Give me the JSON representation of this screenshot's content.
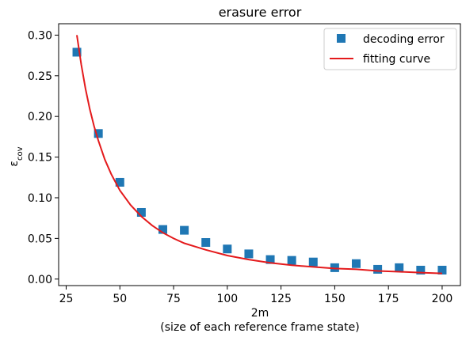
{
  "chart_data": {
    "type": "scatter",
    "title": "erasure error",
    "xlabel": "2m",
    "xlabel_sub": "(size of each reference frame state)",
    "ylabel_base": "ε",
    "ylabel_sub": "cov",
    "xlim": [
      21.5,
      208.5
    ],
    "ylim": [
      -0.008,
      0.314
    ],
    "xticks": [
      25,
      50,
      75,
      100,
      125,
      150,
      175,
      200
    ],
    "xtick_labels": [
      "25",
      "50",
      "75",
      "100",
      "125",
      "150",
      "175",
      "200"
    ],
    "yticks": [
      0.0,
      0.05,
      0.1,
      0.15,
      0.2,
      0.25,
      0.3
    ],
    "ytick_labels": [
      "0.00",
      "0.05",
      "0.10",
      "0.15",
      "0.20",
      "0.25",
      "0.30"
    ],
    "grid": false,
    "legend_position": "top-right",
    "series": [
      {
        "name": "decoding error",
        "kind": "scatter",
        "marker": "square",
        "color": "#1f77b4",
        "x": [
          30,
          40,
          50,
          60,
          70,
          80,
          90,
          100,
          110,
          120,
          130,
          140,
          150,
          160,
          170,
          180,
          190,
          200
        ],
        "y": [
          0.279,
          0.179,
          0.119,
          0.082,
          0.061,
          0.06,
          0.045,
          0.037,
          0.031,
          0.024,
          0.023,
          0.021,
          0.014,
          0.019,
          0.012,
          0.014,
          0.011,
          0.011
        ]
      },
      {
        "name": "fitting curve",
        "kind": "line",
        "color": "#e41a1c",
        "x": [
          30,
          32,
          34,
          36,
          38,
          40,
          43,
          46,
          50,
          55,
          60,
          65,
          70,
          75,
          80,
          90,
          100,
          110,
          120,
          130,
          140,
          150,
          160,
          170,
          180,
          190,
          200
        ],
        "y": [
          0.3,
          0.264,
          0.234,
          0.209,
          0.188,
          0.17,
          0.147,
          0.129,
          0.109,
          0.091,
          0.077,
          0.066,
          0.057,
          0.05,
          0.044,
          0.036,
          0.029,
          0.024,
          0.02,
          0.017,
          0.015,
          0.013,
          0.012,
          0.01,
          0.009,
          0.008,
          0.007
        ]
      }
    ]
  }
}
